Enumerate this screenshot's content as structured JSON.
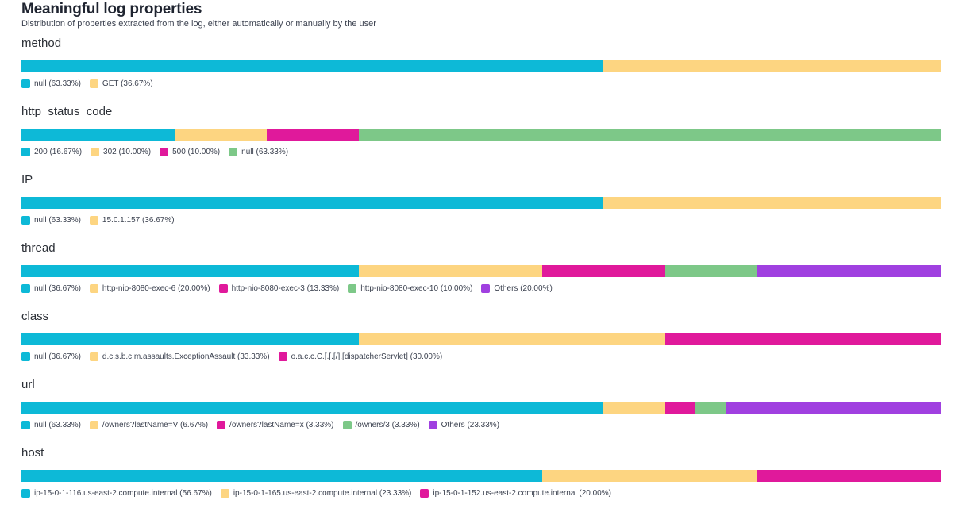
{
  "header": {
    "title": "Meaningful log properties",
    "subtitle": "Distribution of properties extracted from the log, either automatically or manually by the user"
  },
  "colors": {
    "cyan": "#0db9d7",
    "yellow": "#fdd581",
    "magenta": "#e0199b",
    "green": "#7dc888",
    "purple": "#a040e0"
  },
  "chart_data": [
    {
      "type": "bar",
      "title": "method",
      "series": [
        {
          "name": "null",
          "value": 63.33,
          "label": "null (63.33%)",
          "color": "#0db9d7"
        },
        {
          "name": "GET",
          "value": 36.67,
          "label": "GET (36.67%)",
          "color": "#fdd581"
        }
      ]
    },
    {
      "type": "bar",
      "title": "http_status_code",
      "series": [
        {
          "name": "200",
          "value": 16.67,
          "label": "200 (16.67%)",
          "color": "#0db9d7"
        },
        {
          "name": "302",
          "value": 10.0,
          "label": "302 (10.00%)",
          "color": "#fdd581"
        },
        {
          "name": "500",
          "value": 10.0,
          "label": "500 (10.00%)",
          "color": "#e0199b"
        },
        {
          "name": "null",
          "value": 63.33,
          "label": "null (63.33%)",
          "color": "#7dc888"
        }
      ]
    },
    {
      "type": "bar",
      "title": "IP",
      "series": [
        {
          "name": "null",
          "value": 63.33,
          "label": "null (63.33%)",
          "color": "#0db9d7"
        },
        {
          "name": "15.0.1.157",
          "value": 36.67,
          "label": "15.0.1.157 (36.67%)",
          "color": "#fdd581"
        }
      ]
    },
    {
      "type": "bar",
      "title": "thread",
      "series": [
        {
          "name": "null",
          "value": 36.67,
          "label": "null (36.67%)",
          "color": "#0db9d7"
        },
        {
          "name": "http-nio-8080-exec-6",
          "value": 20.0,
          "label": "http-nio-8080-exec-6 (20.00%)",
          "color": "#fdd581"
        },
        {
          "name": "http-nio-8080-exec-3",
          "value": 13.33,
          "label": "http-nio-8080-exec-3 (13.33%)",
          "color": "#e0199b"
        },
        {
          "name": "http-nio-8080-exec-10",
          "value": 10.0,
          "label": "http-nio-8080-exec-10 (10.00%)",
          "color": "#7dc888"
        },
        {
          "name": "Others",
          "value": 20.0,
          "label": "Others (20.00%)",
          "color": "#a040e0"
        }
      ]
    },
    {
      "type": "bar",
      "title": "class",
      "series": [
        {
          "name": "null",
          "value": 36.67,
          "label": "null (36.67%)",
          "color": "#0db9d7"
        },
        {
          "name": "d.c.s.b.c.m.assaults.ExceptionAssault",
          "value": 33.33,
          "label": "d.c.s.b.c.m.assaults.ExceptionAssault (33.33%)",
          "color": "#fdd581"
        },
        {
          "name": "o.a.c.c.C.[.[.[/].[dispatcherServlet]",
          "value": 30.0,
          "label": "o.a.c.c.C.[.[.[/].[dispatcherServlet] (30.00%)",
          "color": "#e0199b"
        }
      ]
    },
    {
      "type": "bar",
      "title": "url",
      "series": [
        {
          "name": "null",
          "value": 63.33,
          "label": "null (63.33%)",
          "color": "#0db9d7"
        },
        {
          "name": "/owners?lastName=V",
          "value": 6.67,
          "label": "/owners?lastName=V (6.67%)",
          "color": "#fdd581"
        },
        {
          "name": "/owners?lastName=x",
          "value": 3.33,
          "label": "/owners?lastName=x (3.33%)",
          "color": "#e0199b"
        },
        {
          "name": "/owners/3",
          "value": 3.33,
          "label": "/owners/3 (3.33%)",
          "color": "#7dc888"
        },
        {
          "name": "Others",
          "value": 23.33,
          "label": "Others (23.33%)",
          "color": "#a040e0"
        }
      ]
    },
    {
      "type": "bar",
      "title": "host",
      "series": [
        {
          "name": "ip-15-0-1-116.us-east-2.compute.internal",
          "value": 56.67,
          "label": "ip-15-0-1-116.us-east-2.compute.internal (56.67%)",
          "color": "#0db9d7"
        },
        {
          "name": "ip-15-0-1-165.us-east-2.compute.internal",
          "value": 23.33,
          "label": "ip-15-0-1-165.us-east-2.compute.internal (23.33%)",
          "color": "#fdd581"
        },
        {
          "name": "ip-15-0-1-152.us-east-2.compute.internal",
          "value": 20.0,
          "label": "ip-15-0-1-152.us-east-2.compute.internal (20.00%)",
          "color": "#e0199b"
        }
      ]
    }
  ]
}
